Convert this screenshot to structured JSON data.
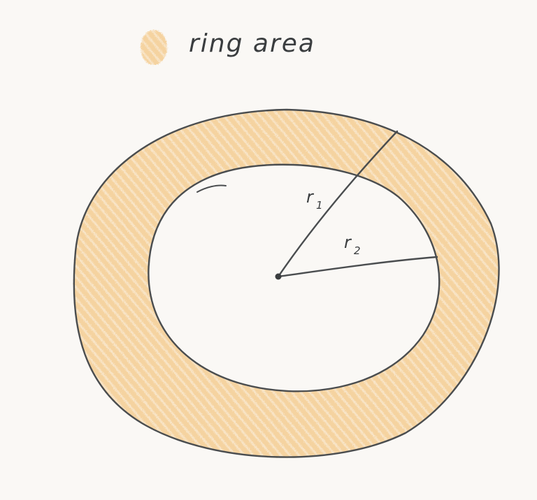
{
  "legend": {
    "label": "ring area",
    "swatch_color": "#f5d3a0"
  },
  "diagram": {
    "ring_fill_color": "#f5d3a0",
    "stroke_color": "#4a4d4f",
    "radius_outer": {
      "letter": "r",
      "subscript": "1"
    },
    "radius_inner": {
      "letter": "r",
      "subscript": "2"
    }
  }
}
